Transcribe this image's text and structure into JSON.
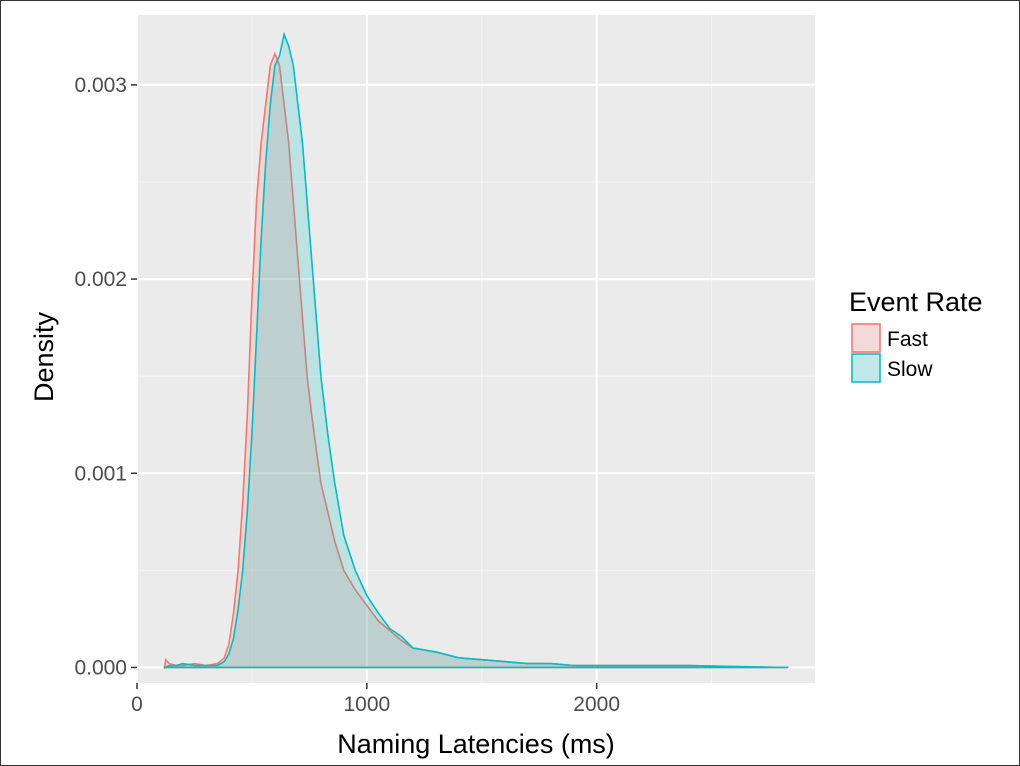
{
  "chart_data": {
    "type": "area",
    "xlabel": "Naming Latencies (ms)",
    "ylabel": "Density",
    "xlim": [
      0,
      2950
    ],
    "ylim": [
      -8e-05,
      0.00336
    ],
    "x_ticks": [
      0,
      1000,
      2000
    ],
    "x_tick_labels": [
      "0",
      "1000",
      "2000"
    ],
    "x_minor": [
      500,
      1500,
      2500
    ],
    "y_ticks": [
      0,
      0.001,
      0.002,
      0.003
    ],
    "y_tick_labels": [
      "0.000",
      "0.001",
      "0.002",
      "0.003"
    ],
    "y_minor": [
      0.0005,
      0.0015,
      0.0025
    ],
    "grid": true,
    "legend": {
      "title": "Event Rate",
      "position": "right"
    },
    "series": [
      {
        "name": "Fast",
        "color": "#f8766d",
        "fill": "#f8766d",
        "points": [
          [
            120,
            0
          ],
          [
            125,
            4e-05
          ],
          [
            140,
            2e-05
          ],
          [
            170,
            1e-05
          ],
          [
            200,
            1e-05
          ],
          [
            250,
            2e-05
          ],
          [
            300,
            1e-05
          ],
          [
            350,
            2e-05
          ],
          [
            380,
            5e-05
          ],
          [
            400,
            0.00012
          ],
          [
            420,
            0.00028
          ],
          [
            440,
            0.0005
          ],
          [
            460,
            0.00085
          ],
          [
            480,
            0.0013
          ],
          [
            500,
            0.0019
          ],
          [
            520,
            0.0024
          ],
          [
            540,
            0.0027
          ],
          [
            560,
            0.0029
          ],
          [
            580,
            0.0031
          ],
          [
            600,
            0.00316
          ],
          [
            620,
            0.0031
          ],
          [
            640,
            0.0029
          ],
          [
            660,
            0.0027
          ],
          [
            680,
            0.0024
          ],
          [
            700,
            0.0021
          ],
          [
            720,
            0.0018
          ],
          [
            740,
            0.0015
          ],
          [
            760,
            0.0013
          ],
          [
            780,
            0.00112
          ],
          [
            800,
            0.00095
          ],
          [
            830,
            0.0008
          ],
          [
            860,
            0.00065
          ],
          [
            900,
            0.0005
          ],
          [
            950,
            0.0004
          ],
          [
            1000,
            0.00032
          ],
          [
            1050,
            0.00024
          ],
          [
            1100,
            0.00019
          ],
          [
            1150,
            0.00014
          ],
          [
            1200,
            0.0001
          ],
          [
            1300,
            8e-05
          ],
          [
            1400,
            5e-05
          ],
          [
            1500,
            4e-05
          ],
          [
            1600,
            3e-05
          ],
          [
            1700,
            2e-05
          ],
          [
            1800,
            2e-05
          ],
          [
            1900,
            1e-05
          ],
          [
            2000,
            1e-05
          ],
          [
            2200,
            1e-05
          ],
          [
            2400,
            1e-05
          ],
          [
            2600,
            5e-06
          ],
          [
            2830,
            0
          ]
        ]
      },
      {
        "name": "Slow",
        "color": "#00bfc4",
        "fill": "#00bfc4",
        "points": [
          [
            120,
            0
          ],
          [
            140,
            1e-05
          ],
          [
            170,
            1e-05
          ],
          [
            200,
            2e-05
          ],
          [
            250,
            1e-05
          ],
          [
            300,
            1e-05
          ],
          [
            350,
            1e-05
          ],
          [
            380,
            3e-05
          ],
          [
            400,
            7e-05
          ],
          [
            420,
            0.00015
          ],
          [
            440,
            0.0003
          ],
          [
            460,
            0.0005
          ],
          [
            480,
            0.0008
          ],
          [
            500,
            0.0012
          ],
          [
            520,
            0.0017
          ],
          [
            540,
            0.0022
          ],
          [
            560,
            0.0026
          ],
          [
            580,
            0.0029
          ],
          [
            600,
            0.0031
          ],
          [
            620,
            0.00315
          ],
          [
            640,
            0.00326
          ],
          [
            660,
            0.0032
          ],
          [
            680,
            0.0031
          ],
          [
            700,
            0.0029
          ],
          [
            720,
            0.0027
          ],
          [
            740,
            0.0024
          ],
          [
            760,
            0.0021
          ],
          [
            780,
            0.0018
          ],
          [
            800,
            0.0015
          ],
          [
            830,
            0.0012
          ],
          [
            860,
            0.00095
          ],
          [
            900,
            0.00068
          ],
          [
            950,
            0.0005
          ],
          [
            1000,
            0.00037
          ],
          [
            1050,
            0.00028
          ],
          [
            1100,
            0.0002
          ],
          [
            1150,
            0.00016
          ],
          [
            1200,
            0.0001
          ],
          [
            1300,
            8e-05
          ],
          [
            1400,
            5e-05
          ],
          [
            1500,
            4e-05
          ],
          [
            1600,
            3e-05
          ],
          [
            1700,
            2e-05
          ],
          [
            1800,
            2e-05
          ],
          [
            1900,
            1e-05
          ],
          [
            2000,
            1e-05
          ],
          [
            2200,
            1e-05
          ],
          [
            2400,
            1e-05
          ],
          [
            2600,
            5e-06
          ],
          [
            2830,
            0
          ]
        ]
      }
    ]
  }
}
